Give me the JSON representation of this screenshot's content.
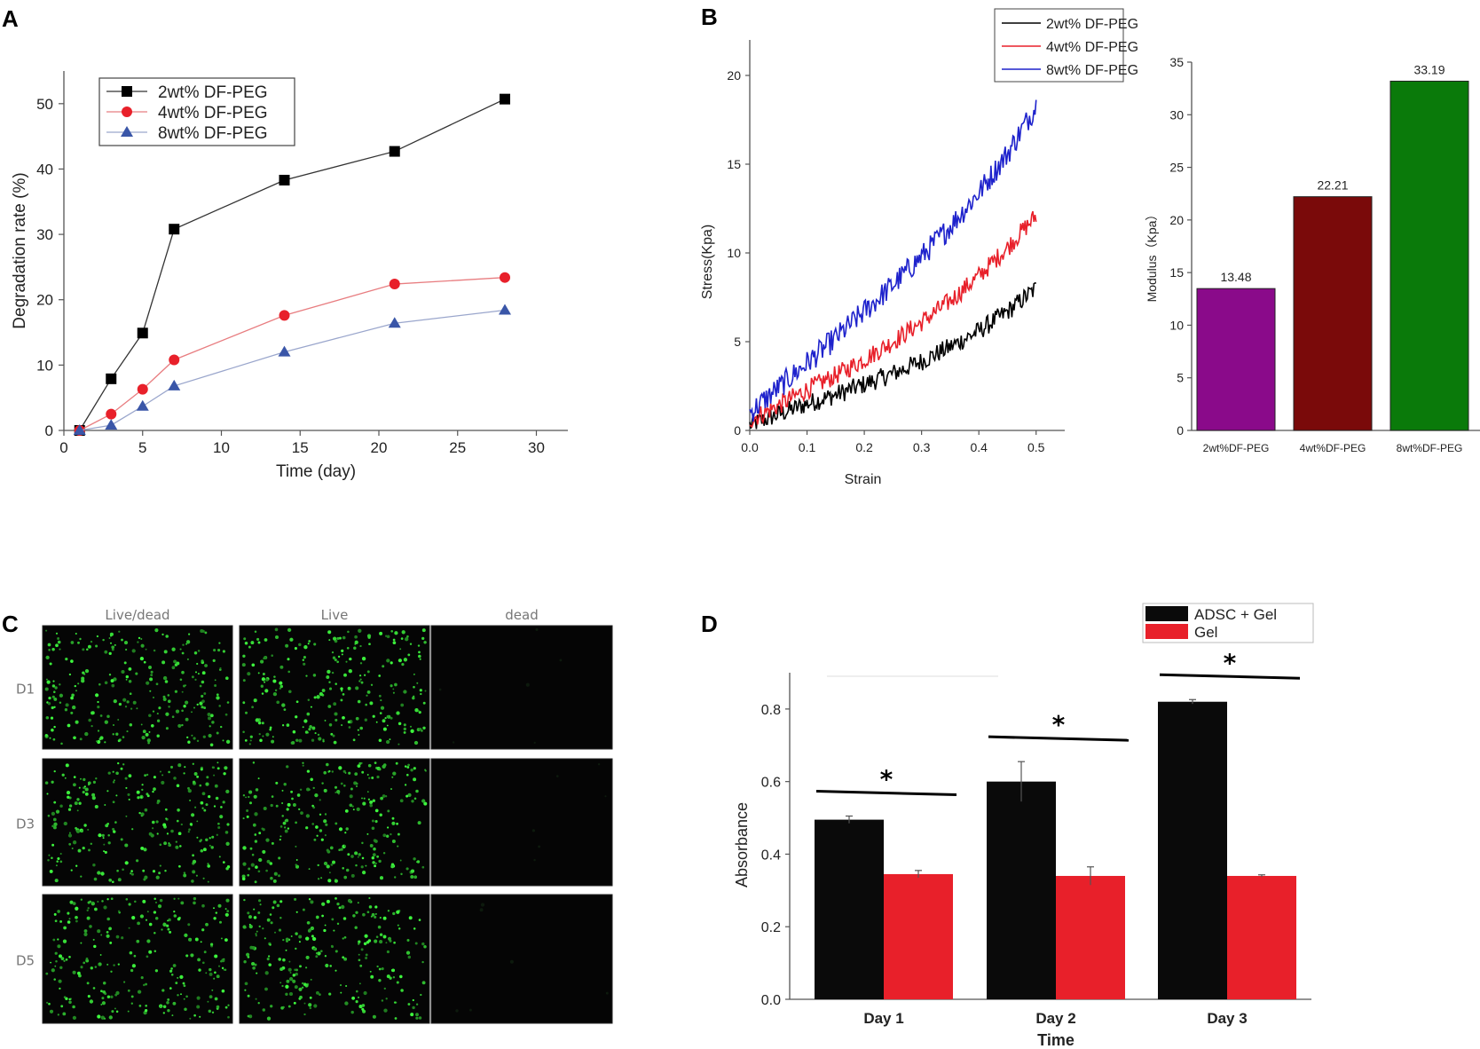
{
  "panel_labels": {
    "a": "A",
    "b": "B",
    "c": "C",
    "d": "D"
  },
  "chart_data": [
    {
      "id": "A",
      "type": "line",
      "title": "",
      "xlabel": "Time (day)",
      "ylabel": "Degradation rate (%)",
      "xlim": [
        0,
        32
      ],
      "ylim": [
        0,
        55
      ],
      "xticks": [
        0,
        5,
        10,
        15,
        20,
        25,
        30
      ],
      "yticks": [
        0,
        10,
        20,
        30,
        40,
        50
      ],
      "legend_position": "top-left",
      "series": [
        {
          "name": "2wt% DF-PEG",
          "color": "#000000",
          "marker": "square",
          "x": [
            1,
            3,
            5,
            7,
            14,
            21,
            28
          ],
          "y": [
            0,
            7.9,
            14.9,
            30.8,
            38.3,
            42.7,
            50.7
          ]
        },
        {
          "name": "4wt% DF-PEG",
          "color": "#e8202a",
          "marker": "circle",
          "x": [
            1,
            3,
            5,
            7,
            14,
            21,
            28
          ],
          "y": [
            0,
            2.5,
            6.3,
            10.8,
            17.6,
            22.4,
            23.4
          ]
        },
        {
          "name": "8wt% DF-PEG",
          "color": "#3a56a8",
          "marker": "triangle",
          "x": [
            1,
            3,
            5,
            7,
            14,
            21,
            28
          ],
          "y": [
            0,
            0.8,
            3.7,
            6.8,
            12.0,
            16.4,
            18.4
          ]
        }
      ]
    },
    {
      "id": "B-left",
      "type": "line",
      "xlabel": "Strain",
      "ylabel": "Stress(Kpa)",
      "xlim": [
        0,
        0.55
      ],
      "ylim": [
        0,
        22
      ],
      "xticks": [
        "0.0",
        "0.1",
        "0.2",
        "0.3",
        "0.4",
        "0.5"
      ],
      "yticks": [
        0,
        5,
        10,
        15,
        20
      ],
      "legend_position": "top-right",
      "series": [
        {
          "name": "2wt% DF-PEG",
          "color": "#000000",
          "x": [
            0,
            0.05,
            0.1,
            0.15,
            0.2,
            0.25,
            0.3,
            0.35,
            0.4,
            0.45,
            0.5
          ],
          "y": [
            0.3,
            0.9,
            1.5,
            2.0,
            2.6,
            3.2,
            3.9,
            4.7,
            5.6,
            6.7,
            8.0
          ]
        },
        {
          "name": "4wt% DF-PEG",
          "color": "#e8202a",
          "x": [
            0,
            0.05,
            0.1,
            0.15,
            0.2,
            0.25,
            0.3,
            0.35,
            0.4,
            0.45,
            0.5
          ],
          "y": [
            0.6,
            1.4,
            2.3,
            3.1,
            4.0,
            5.0,
            6.1,
            7.3,
            8.7,
            10.3,
            12.1
          ]
        },
        {
          "name": "8wt% DF-PEG",
          "color": "#1e22cc",
          "x": [
            0,
            0.05,
            0.1,
            0.15,
            0.2,
            0.25,
            0.3,
            0.35,
            0.4,
            0.45,
            0.5
          ],
          "y": [
            1.0,
            2.4,
            3.8,
            5.2,
            6.7,
            8.2,
            9.8,
            11.5,
            13.4,
            15.6,
            18.3
          ]
        }
      ]
    },
    {
      "id": "B-right",
      "type": "bar",
      "xlabel": "",
      "ylabel": "Modulus（Kpa）",
      "ylim": [
        0,
        35
      ],
      "yticks": [
        0,
        5,
        10,
        15,
        20,
        25,
        30,
        35
      ],
      "categories": [
        "2wt%DF-PEG",
        "4wt%DF-PEG",
        "8wt%DF-PEG"
      ],
      "values": [
        13.48,
        22.21,
        33.19
      ],
      "labels": [
        "13.48",
        "22.21",
        "33.19"
      ],
      "colors": [
        "#8a0a8a",
        "#7a0a0a",
        "#0a7a0a"
      ]
    },
    {
      "id": "D",
      "type": "bar",
      "xlabel": "Time",
      "ylabel": "Absorbance",
      "ylim": [
        0,
        0.9
      ],
      "yticks": [
        "0.0",
        "0.2",
        "0.4",
        "0.6",
        "0.8"
      ],
      "categories": [
        "Day 1",
        "Day 2",
        "Day 3"
      ],
      "legend_position": "top-right",
      "significance": [
        "*",
        "*",
        "*"
      ],
      "series": [
        {
          "name": "ADSC + Gel",
          "color": "#0a0a0a",
          "values": [
            0.495,
            0.6,
            0.82
          ],
          "errors": [
            0.01,
            0.055,
            0.006
          ]
        },
        {
          "name": "Gel",
          "color": "#e8202a",
          "values": [
            0.345,
            0.34,
            0.34
          ],
          "errors": [
            0.01,
            0.025,
            0.003
          ]
        }
      ]
    }
  ],
  "micrographs": {
    "columns": [
      "Live/dead",
      "Live",
      "dead"
    ],
    "rows": [
      "D1",
      "D3",
      "D5"
    ]
  }
}
